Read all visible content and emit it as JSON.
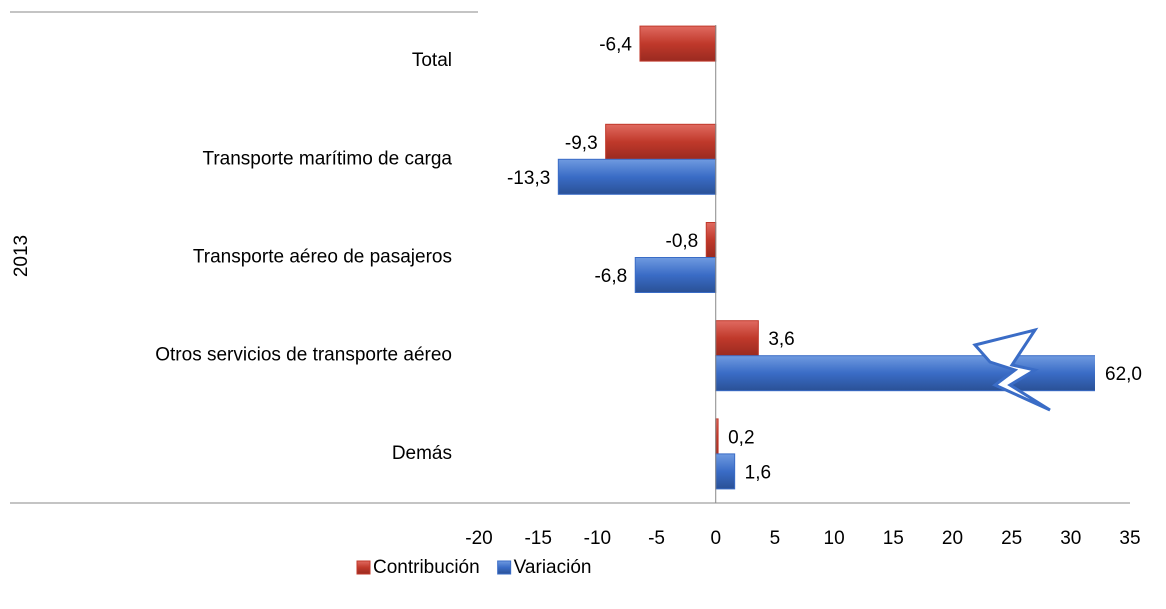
{
  "chart_data": {
    "type": "hbar",
    "y_label": "2013",
    "categories": [
      "Total",
      "Transporte marítimo de carga",
      "Transporte aéreo de pasajeros",
      "Otros servicios de transporte aéreo",
      "Demás"
    ],
    "series": [
      {
        "name": "Contribución",
        "color": "#c0392b",
        "values": [
          -6.4,
          -9.3,
          -0.8,
          3.6,
          0.2
        ],
        "value_labels": [
          "-6,4",
          "-9,3",
          "-0,8",
          "3,6",
          "0,2"
        ]
      },
      {
        "name": "Variación",
        "color": "#3a6cc6",
        "values": [
          null,
          -13.3,
          -6.8,
          62.0,
          1.6
        ],
        "value_labels": [
          null,
          "-13,3",
          "-6,8",
          "62,0",
          "1,6"
        ]
      }
    ],
    "xlim": [
      -20,
      35
    ],
    "xticks": [
      -20,
      -15,
      -10,
      -5,
      0,
      5,
      10,
      15,
      20,
      25,
      30,
      35
    ],
    "legend": "bottom"
  }
}
